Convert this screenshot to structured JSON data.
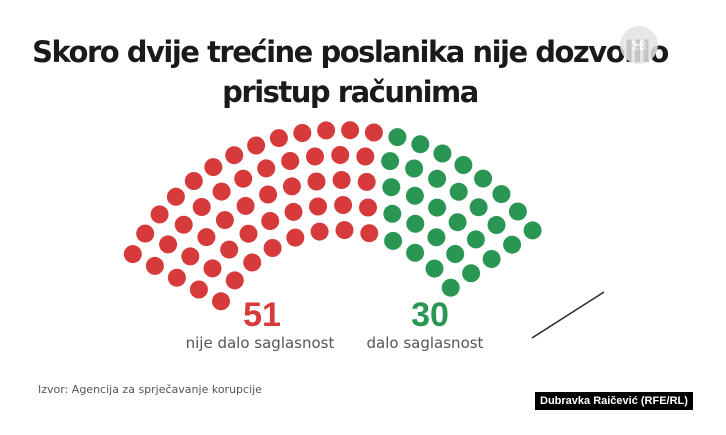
{
  "title_line1": "Skoro dvije trećine poslanika nije dozvolilo",
  "title_line2": "pristup računima",
  "badge_label": "18",
  "against": {
    "number": "51",
    "label": "nije dalo saglasnost",
    "color": "#d63a3a"
  },
  "for": {
    "number": "30",
    "label": "dalo saglasnost",
    "color": "#2a9654"
  },
  "source": "Izvor: Agencija za sprječavanje korupcije",
  "credit": "Dubravka Raičević (RFE/RL)",
  "chart_data": {
    "type": "parliament",
    "total_seats": 81,
    "series": [
      {
        "name": "nije dalo saglasnost",
        "value": 51,
        "color": "#d63a3a"
      },
      {
        "name": "dalo saglasnost",
        "value": 30,
        "color": "#2a9654"
      }
    ]
  }
}
